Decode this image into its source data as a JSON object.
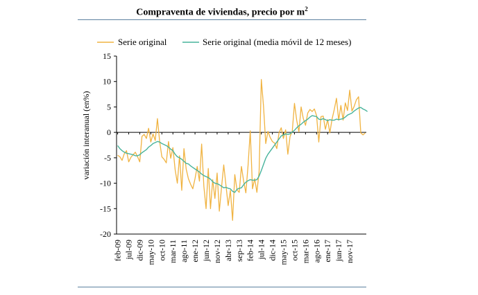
{
  "header": {
    "title_main": "Compraventa de viviendas, precio por m",
    "title_sup": "2"
  },
  "chart_data": {
    "type": "line",
    "title": "Compraventa de viviendas, precio por m²",
    "xlabel": "",
    "ylabel": "variación interanual (en%)",
    "ylim": [
      -20,
      15
    ],
    "yticks": [
      -20,
      -15,
      -10,
      -5,
      0,
      5,
      10,
      15
    ],
    "grid": false,
    "legend_position": "top",
    "x_tick_labels": [
      "feb-09",
      "jul-09",
      "dic-09",
      "may-10",
      "oct-10",
      "mar-11",
      "ago-11",
      "ene-12",
      "jun-12",
      "nov-12",
      "abr-13",
      "sep-13",
      "feb-14",
      "jul-14",
      "dic-14",
      "may-15",
      "oct-15",
      "mar-16",
      "ago-16",
      "ene-17",
      "jun-17",
      "nov-17"
    ],
    "x_start": "2009-02",
    "x_end": "2017-11",
    "series": [
      {
        "name": "Serie original",
        "color": "#f0b341",
        "values": [
          -4.5,
          -4.8,
          -5.5,
          -4.2,
          -3.6,
          -5.8,
          -4.9,
          -4.4,
          -3.9,
          -4.8,
          -5.8,
          -0.8,
          -0.4,
          -1.2,
          0.8,
          -1.9,
          -0.3,
          -1.6,
          2.7,
          -1.8,
          -4.8,
          -5.3,
          -6.0,
          -1.8,
          -5.1,
          -3.0,
          -7.3,
          -10.0,
          -4.6,
          -11.4,
          -3.2,
          -7.2,
          -9.1,
          -10.2,
          -11.1,
          -9.1,
          -6.7,
          -9.6,
          -2.3,
          -10.6,
          -15.0,
          -7.1,
          -15.0,
          -9.3,
          -13.0,
          -8.0,
          -15.5,
          -10.8,
          -6.4,
          -10.4,
          -14.4,
          -11.4,
          -17.3,
          -8.3,
          -11.3,
          -11.8,
          -6.7,
          -9.6,
          -11.9,
          -6.5,
          0.3,
          -11.1,
          -9.1,
          -11.8,
          -7.7,
          10.4,
          5.1,
          -2.2,
          0.2,
          -1.0,
          -1.8,
          -2.1,
          -3.2,
          -0.1,
          0.9,
          -1.2,
          0.5,
          -4.3,
          -0.8,
          0.2,
          5.7,
          2.4,
          0.1,
          5.0,
          2.7,
          1.4,
          3.8,
          4.5,
          4.1,
          4.6,
          3.3,
          -1.9,
          3.1,
          3.2,
          0.6,
          2.5,
          -0.1,
          2.6,
          4.5,
          6.7,
          2.4,
          5.3,
          2.4,
          5.8,
          4.3,
          8.3,
          4.2,
          5.1,
          6.4,
          7.0,
          -0.1,
          -0.5,
          -0.1
        ]
      },
      {
        "name": "Serie original  (media móvil de 12 meses)",
        "color": "#47b39b",
        "values": [
          -2.6,
          -3.2,
          -3.6,
          -3.9,
          -4.1,
          -4.2,
          -4.3,
          -4.4,
          -4.6,
          -4.6,
          -4.4,
          -4.0,
          -3.7,
          -3.4,
          -2.9,
          -2.6,
          -2.2,
          -2.0,
          -1.8,
          -1.9,
          -2.2,
          -2.4,
          -2.6,
          -2.9,
          -3.3,
          -3.6,
          -4.3,
          -4.8,
          -5.0,
          -5.3,
          -5.7,
          -6.1,
          -6.2,
          -6.6,
          -6.9,
          -7.2,
          -7.5,
          -7.8,
          -8.2,
          -8.5,
          -8.7,
          -8.9,
          -9.2,
          -9.7,
          -10.0,
          -10.1,
          -10.3,
          -10.6,
          -10.9,
          -10.8,
          -11.0,
          -11.1,
          -11.6,
          -11.8,
          -11.2,
          -11.0,
          -10.9,
          -10.3,
          -9.8,
          -9.5,
          -9.3,
          -9.4,
          -9.4,
          -9.3,
          -8.6,
          -7.5,
          -6.3,
          -5.1,
          -4.3,
          -3.7,
          -3.1,
          -2.5,
          -1.9,
          -1.3,
          -0.7,
          -0.5,
          -0.3,
          -0.4,
          -0.3,
          0.1,
          0.4,
          0.9,
          1.3,
          1.6,
          2.0,
          2.3,
          2.6,
          3.0,
          3.3,
          3.2,
          3.1,
          2.6,
          2.5,
          2.7,
          2.5,
          2.3,
          2.5,
          2.4,
          2.4,
          2.6,
          2.5,
          2.6,
          2.7,
          3.0,
          3.4,
          3.6,
          3.8,
          4.2,
          4.5,
          4.8,
          4.9,
          4.6,
          4.4,
          4.1
        ]
      }
    ]
  }
}
